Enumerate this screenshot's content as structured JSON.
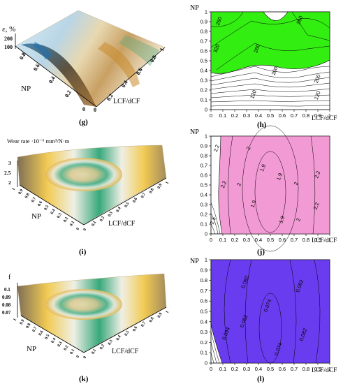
{
  "colors": {
    "green_fill": "#33ee11",
    "pink_fill": "#f29ad4",
    "blue_fill": "#6a3cf0",
    "axis": "#000000",
    "contour": "#000000",
    "grid": "#888888"
  },
  "chart_data": [
    {
      "id": "g",
      "type": "surface3d",
      "caption": "(g)",
      "zlabel": "ε, %",
      "ylabel": "NP",
      "xlabel": "LCF/dCF",
      "zticks": [
        "200",
        "100"
      ],
      "yticks": [
        "0",
        "0.2",
        "0.4",
        "0.6",
        "0.8"
      ],
      "xticks": [
        "0",
        "0.2",
        "0.4",
        "0.6",
        "0.8",
        "1"
      ]
    },
    {
      "id": "h",
      "type": "contour",
      "caption": "(h)",
      "xlabel": "LCF/dCF",
      "ylabel": "NP",
      "xlim": [
        0,
        1
      ],
      "ylim": [
        0,
        1
      ],
      "xticks": [
        "0",
        "0.1",
        "0.2",
        "0.3",
        "0.4",
        "0.5",
        "0.6",
        "0.7",
        "0.8",
        "0.9",
        "1"
      ],
      "yticks": [
        "0",
        "0.1",
        "0.2",
        "0.3",
        "0.4",
        "0.5",
        "0.6",
        "0.7",
        "0.8",
        "0.9",
        "1"
      ],
      "contour_labels": [
        {
          "text": "260",
          "x": 0.08,
          "y": 0.9
        },
        {
          "text": "260",
          "x": 0.76,
          "y": 0.91
        },
        {
          "text": "320",
          "x": 0.06,
          "y": 0.62
        },
        {
          "text": "260",
          "x": 0.4,
          "y": 0.62
        },
        {
          "text": "200",
          "x": 0.55,
          "y": 0.39
        },
        {
          "text": "200",
          "x": 0.91,
          "y": 0.31
        },
        {
          "text": "120",
          "x": 0.37,
          "y": 0.15
        },
        {
          "text": "120",
          "x": 0.91,
          "y": 0.14
        }
      ]
    },
    {
      "id": "i",
      "type": "surface3d",
      "caption": "(i)",
      "zlabel": "Wear rate ·10⁻⁶ mm³/N·m",
      "ylabel": "NP",
      "xlabel": "LCF/dCF",
      "zticks": [
        "3",
        "2.5",
        "2"
      ],
      "yticks": [
        "0",
        "0.1",
        "0.2",
        "0.3",
        "0.4",
        "0.5",
        "0.6",
        "0.7",
        "0.8",
        "0.9",
        "1"
      ],
      "xticks": [
        "0",
        "0.1",
        "0.2",
        "0.3",
        "0.4",
        "0.5",
        "0.6",
        "0.7",
        "0.8",
        "0.9",
        "1"
      ]
    },
    {
      "id": "j",
      "type": "contour",
      "caption": "(j)",
      "xlabel": "LCF/dCF",
      "ylabel": "NP",
      "xlim": [
        0,
        1
      ],
      "ylim": [
        0,
        1
      ],
      "xticks": [
        "0",
        "0.1",
        "0.2",
        "0.3",
        "0.4",
        "0.5",
        "0.6",
        "0.7",
        "0.8",
        "0.9",
        "1"
      ],
      "yticks": [
        "0",
        "0.1",
        "0.2",
        "0.3",
        "0.4",
        "0.5",
        "0.6",
        "0.7",
        "0.8",
        "0.9",
        "1"
      ],
      "contour_labels": [
        {
          "text": "2.2",
          "x": 0.06,
          "y": 0.87
        },
        {
          "text": "2",
          "x": 0.33,
          "y": 0.87
        },
        {
          "text": "1.9",
          "x": 0.45,
          "y": 0.67
        },
        {
          "text": "1.9",
          "x": 0.59,
          "y": 0.58
        },
        {
          "text": "2.2",
          "x": 0.91,
          "y": 0.6
        },
        {
          "text": "2.2",
          "x": 0.12,
          "y": 0.5
        },
        {
          "text": "2",
          "x": 0.25,
          "y": 0.5
        },
        {
          "text": "2",
          "x": 0.73,
          "y": 0.51
        },
        {
          "text": "1.9",
          "x": 0.37,
          "y": 0.3
        },
        {
          "text": "2.2",
          "x": 0.9,
          "y": 0.28
        },
        {
          "text": "2.5",
          "x": 0.03,
          "y": 0.13
        },
        {
          "text": "1.9",
          "x": 0.61,
          "y": 0.14
        },
        {
          "text": "2",
          "x": 0.75,
          "y": 0.14
        }
      ]
    },
    {
      "id": "k",
      "type": "surface3d",
      "caption": "(k)",
      "zlabel": "f",
      "ylabel": "NP",
      "xlabel": "LCF/dCF",
      "zticks": [
        "0.1",
        "0.09",
        "0.08",
        "0.07"
      ],
      "yticks": [
        "0",
        "0.1",
        "0.2",
        "0.3",
        "0.4",
        "0.5",
        "0.6",
        "0.7",
        "0.8",
        "0.9",
        "1"
      ],
      "xticks": [
        "0",
        "0.1",
        "0.2",
        "0.3",
        "0.4",
        "0.5",
        "0.6",
        "0.7",
        "0.8",
        "0.9",
        "1"
      ]
    },
    {
      "id": "l",
      "type": "contour",
      "caption": "(l)",
      "xlabel": "LCF/dCF",
      "ylabel": "NP",
      "xlim": [
        0,
        1
      ],
      "ylim": [
        0,
        1
      ],
      "xticks": [
        "0",
        "0.1",
        "0.2",
        "0.3",
        "0.4",
        "0.5",
        "0.6",
        "0.7",
        "0.8",
        "0.9",
        "1"
      ],
      "yticks": [
        "0",
        "0.1",
        "0.2",
        "0.3",
        "0.4",
        "0.5",
        "0.6",
        "0.7",
        "0.8",
        "0.9",
        "1"
      ],
      "contour_labels": [
        {
          "text": "0.082",
          "x": 0.3,
          "y": 0.78
        },
        {
          "text": "0.082",
          "x": 0.76,
          "y": 0.74
        },
        {
          "text": "0.074",
          "x": 0.49,
          "y": 0.55
        },
        {
          "text": "0.082",
          "x": 0.29,
          "y": 0.4
        },
        {
          "text": "0.094",
          "x": 0.14,
          "y": 0.28
        },
        {
          "text": "0.082",
          "x": 0.79,
          "y": 0.27
        },
        {
          "text": "0.074",
          "x": 0.58,
          "y": 0.13
        }
      ]
    }
  ]
}
